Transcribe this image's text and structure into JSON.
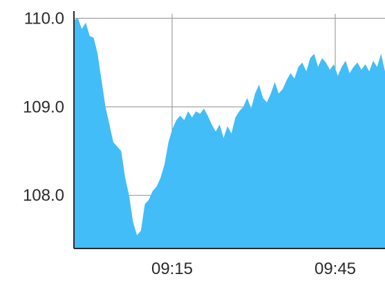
{
  "colors": {
    "fill": "#42bdf7",
    "axis_line": "#2b2b2b",
    "grid": "#8e8e8e",
    "label": "#2b2b2b",
    "background": "#ffffff"
  },
  "chart_data": {
    "type": "area",
    "title": "",
    "xlabel": "",
    "ylabel": "",
    "x_tick_labels": [
      "09:15",
      "09:45"
    ],
    "y_tick_labels": [
      "110.0",
      "109.0",
      "108.0"
    ],
    "y_ticks": [
      110.0,
      109.0,
      108.0
    ],
    "ylim": [
      107.4,
      110.05
    ],
    "grid": true,
    "series": [
      {
        "values": [
          109.98,
          110.0,
          109.88,
          109.95,
          109.8,
          109.78,
          109.6,
          109.3,
          109.0,
          108.8,
          108.6,
          108.55,
          108.5,
          108.2,
          108.0,
          107.7,
          107.55,
          107.6,
          107.9,
          107.95,
          108.05,
          108.1,
          108.2,
          108.35,
          108.6,
          108.75,
          108.85,
          108.9,
          108.85,
          108.95,
          108.88,
          108.95,
          108.92,
          108.98,
          108.9,
          108.8,
          108.72,
          108.8,
          108.65,
          108.78,
          108.7,
          108.88,
          108.95,
          109.0,
          109.1,
          108.98,
          109.15,
          109.25,
          109.1,
          109.05,
          109.15,
          109.28,
          109.15,
          109.2,
          109.3,
          109.38,
          109.32,
          109.45,
          109.5,
          109.4,
          109.55,
          109.6,
          109.45,
          109.55,
          109.5,
          109.42,
          109.48,
          109.35,
          109.45,
          109.52,
          109.38,
          109.45,
          109.5,
          109.42,
          109.48,
          109.4,
          109.52,
          109.45,
          109.6,
          109.4
        ]
      }
    ]
  }
}
